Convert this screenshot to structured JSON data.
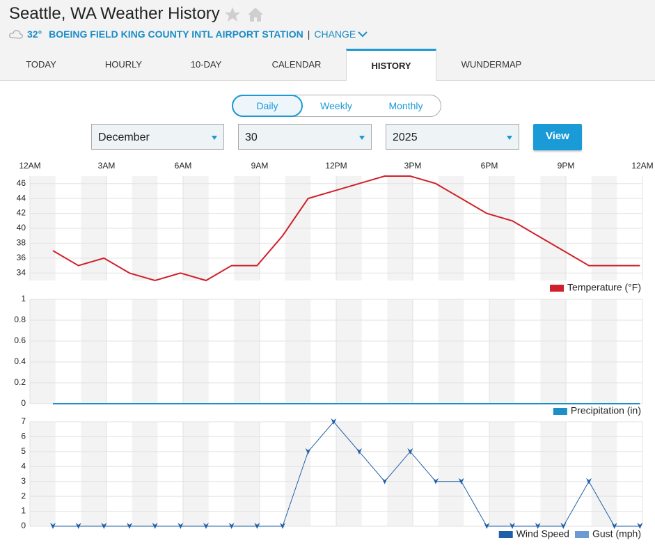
{
  "header": {
    "title": "Seattle, WA Weather History",
    "temperature": "32°",
    "station": "BOEING FIELD KING COUNTY INTL AIRPORT STATION",
    "separator": "|",
    "change": "CHANGE"
  },
  "tabs": [
    "TODAY",
    "HOURLY",
    "10-DAY",
    "CALENDAR",
    "HISTORY",
    "WUNDERMAP"
  ],
  "active_tab": 4,
  "toggle": [
    "Daily",
    "Weekly",
    "Monthly"
  ],
  "active_toggle": 0,
  "selects": {
    "month": "December",
    "day": "30",
    "year": "2025"
  },
  "button": "View",
  "chart_data": [
    {
      "type": "line",
      "xlim": [
        0,
        24
      ],
      "xticks": [
        {
          "value": 0,
          "label": "12AM"
        },
        {
          "value": 3,
          "label": "3AM"
        },
        {
          "value": 6,
          "label": "6AM"
        },
        {
          "value": 9,
          "label": "9AM"
        },
        {
          "value": 12,
          "label": "12PM"
        },
        {
          "value": 15,
          "label": "3PM"
        },
        {
          "value": 18,
          "label": "6PM"
        },
        {
          "value": 21,
          "label": "9PM"
        },
        {
          "value": 24,
          "label": "12AM"
        }
      ],
      "x": [
        0.9,
        1.9,
        2.9,
        3.9,
        4.9,
        5.9,
        6.9,
        7.9,
        8.9,
        9.9,
        10.9,
        11.9,
        12.9,
        13.9,
        14.9,
        15.9,
        16.9,
        17.9,
        18.9,
        19.9,
        20.9,
        21.9,
        22.9,
        23.9
      ],
      "ylim": [
        33,
        47
      ],
      "yticks": [
        34,
        36,
        38,
        40,
        42,
        44,
        46
      ],
      "grid": true,
      "series": [
        {
          "name": "Temperature (°F)",
          "color": "#d0202a",
          "values": [
            37,
            35,
            36,
            34,
            33,
            34,
            33,
            35,
            35,
            39,
            44,
            45,
            46,
            47,
            47,
            46,
            44,
            42,
            41,
            39,
            37,
            35,
            35,
            35
          ]
        }
      ]
    },
    {
      "type": "line",
      "xlim": [
        0,
        24
      ],
      "x": [
        0.9,
        1.9,
        2.9,
        3.9,
        4.9,
        5.9,
        6.9,
        7.9,
        8.9,
        9.9,
        10.9,
        11.9,
        12.9,
        13.9,
        14.9,
        15.9,
        16.9,
        17.9,
        18.9,
        19.9,
        20.9,
        21.9,
        22.9,
        23.9
      ],
      "ylim": [
        0,
        1
      ],
      "yticks": [
        0,
        0.2,
        0.4,
        0.6,
        0.8,
        1
      ],
      "grid": true,
      "series": [
        {
          "name": "Precipitation (in)",
          "color": "#1b8fc6",
          "values": [
            0,
            0,
            0,
            0,
            0,
            0,
            0,
            0,
            0,
            0,
            0,
            0,
            0,
            0,
            0,
            0,
            0,
            0,
            0,
            0,
            0,
            0,
            0,
            0
          ]
        }
      ]
    },
    {
      "type": "line",
      "xlim": [
        0,
        24
      ],
      "x": [
        0.9,
        1.9,
        2.9,
        3.9,
        4.9,
        5.9,
        6.9,
        7.9,
        8.9,
        9.9,
        10.9,
        11.9,
        12.9,
        13.9,
        14.9,
        15.9,
        16.9,
        17.9,
        18.9,
        19.9,
        20.9,
        21.9,
        22.9,
        23.9
      ],
      "ylim": [
        0,
        7
      ],
      "yticks": [
        0,
        1,
        2,
        3,
        4,
        5,
        6,
        7
      ],
      "grid": true,
      "series": [
        {
          "name": "Wind Speed",
          "color": "#1f5fa8",
          "markers": true,
          "values": [
            0,
            0,
            0,
            0,
            0,
            0,
            0,
            0,
            0,
            0,
            5,
            7,
            5,
            3,
            5,
            3,
            3,
            0,
            0,
            0,
            0,
            3,
            0,
            0
          ]
        },
        {
          "name": "Gust (mph)",
          "color": "#6b9bd1",
          "values": [
            null,
            null,
            null,
            null,
            null,
            null,
            null,
            null,
            null,
            null,
            null,
            null,
            null,
            null,
            null,
            null,
            null,
            null,
            null,
            null,
            null,
            null,
            null,
            null
          ]
        }
      ]
    }
  ]
}
